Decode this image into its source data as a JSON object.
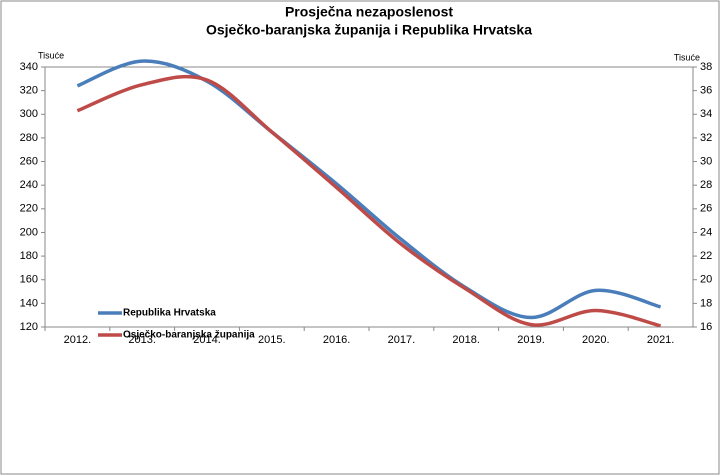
{
  "chart_data": {
    "type": "line",
    "title": [
      "Prosječna nezaposlenost",
      "Osječko-baranjska županija i Republika Hrvatska"
    ],
    "y_label": "Tisuće",
    "y2_label": "Tisuće",
    "categories": [
      "2012.",
      "2013.",
      "2014.",
      "2015.",
      "2016.",
      "2017.",
      "2018.",
      "2019.",
      "2020.",
      "2021."
    ],
    "series": [
      {
        "name": "Republika Hrvatska",
        "color": "#4a7ebb",
        "values": [
          324,
          345,
          328,
          285,
          241,
          194,
          153,
          128,
          151,
          137
        ]
      },
      {
        "name": "Osječko-baranjska županija",
        "color": "#be4b48",
        "axis": "y2",
        "values": [
          34.3,
          36.5,
          36.9,
          32.5,
          27.8,
          23.0,
          19.2,
          16.2,
          17.4,
          16.1
        ]
      }
    ],
    "ylim": [
      120,
      340
    ],
    "yticks": [
      120,
      140,
      160,
      180,
      200,
      220,
      240,
      260,
      280,
      300,
      320,
      340
    ],
    "y2lim": [
      16,
      38
    ],
    "y2ticks": [
      16,
      18,
      20,
      22,
      24,
      26,
      28,
      30,
      32,
      34,
      36,
      38
    ],
    "legend": "lower left",
    "smooth": true
  }
}
